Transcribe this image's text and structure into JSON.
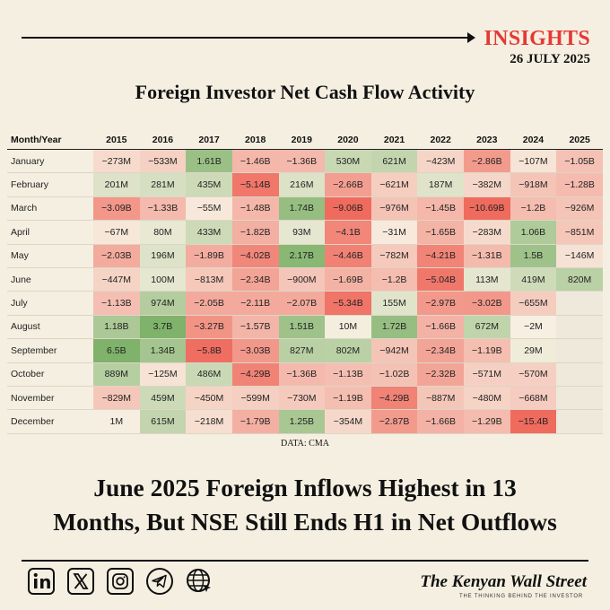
{
  "header": {
    "insights_label": "INSIGHTS",
    "date": "26 JULY 2025"
  },
  "chart_data": {
    "type": "heatmap",
    "title": "Foreign Investor Net Cash Flow Activity",
    "corner_label": "Month/Year",
    "columns": [
      "2015",
      "2016",
      "2017",
      "2018",
      "2019",
      "2020",
      "2021",
      "2022",
      "2023",
      "2024",
      "2025"
    ],
    "rows": [
      {
        "label": "January",
        "values": [
          -273,
          -533,
          1610,
          -1460,
          -1360,
          530,
          621,
          -423,
          -2860,
          -107,
          -1050
        ],
        "text": [
          "−273M",
          "−533M",
          "1.61B",
          "−1.46B",
          "−1.36B",
          "530M",
          "621M",
          "−423M",
          "−2.86B",
          "−107M",
          "−1.05B"
        ]
      },
      {
        "label": "February",
        "values": [
          201,
          281,
          435,
          -5140,
          216,
          -2660,
          -621,
          187,
          -382,
          -918,
          -1280
        ],
        "text": [
          "201M",
          "281M",
          "435M",
          "−5.14B",
          "216M",
          "−2.66B",
          "−621M",
          "187M",
          "−382M",
          "−918M",
          "−1.28B"
        ]
      },
      {
        "label": "March",
        "values": [
          -3090,
          -1330,
          -55,
          -1480,
          1740,
          -9060,
          -976,
          -1450,
          -10690,
          -1200,
          -926
        ],
        "text": [
          "−3.09B",
          "−1.33B",
          "−55M",
          "−1.48B",
          "1.74B",
          "−9.06B",
          "−976M",
          "−1.45B",
          "−10.69B",
          "−1.2B",
          "−926M"
        ]
      },
      {
        "label": "April",
        "values": [
          -67,
          80,
          433,
          -1820,
          93,
          -4100,
          -31,
          -1650,
          -283,
          1060,
          -851
        ],
        "text": [
          "−67M",
          "80M",
          "433M",
          "−1.82B",
          "93M",
          "−4.1B",
          "−31M",
          "−1.65B",
          "−283M",
          "1.06B",
          "−851M"
        ]
      },
      {
        "label": "May",
        "values": [
          -2030,
          196,
          -1890,
          -4020,
          2170,
          -4460,
          -782,
          -4210,
          -1310,
          1500,
          -146
        ],
        "text": [
          "−2.03B",
          "196M",
          "−1.89B",
          "−4.02B",
          "2.17B",
          "−4.46B",
          "−782M",
          "−4.21B",
          "−1.31B",
          "1.5B",
          "−146M"
        ]
      },
      {
        "label": "June",
        "values": [
          -447,
          100,
          -813,
          -2340,
          -900,
          -1690,
          -1200,
          -5040,
          113,
          419,
          820
        ],
        "text": [
          "−447M",
          "100M",
          "−813M",
          "−2.34B",
          "−900M",
          "−1.69B",
          "−1.2B",
          "−5.04B",
          "113M",
          "419M",
          "820M"
        ]
      },
      {
        "label": "July",
        "values": [
          -1130,
          974,
          -2050,
          -2110,
          -2070,
          -5340,
          155,
          -2970,
          -3020,
          -655,
          null
        ],
        "text": [
          "−1.13B",
          "974M",
          "−2.05B",
          "−2.11B",
          "−2.07B",
          "−5.34B",
          "155M",
          "−2.97B",
          "−3.02B",
          "−655M",
          ""
        ]
      },
      {
        "label": "August",
        "values": [
          1180,
          3700,
          -3270,
          -1570,
          1510,
          10,
          1720,
          -1660,
          672,
          -2,
          null
        ],
        "text": [
          "1.18B",
          "3.7B",
          "−3.27B",
          "−1.57B",
          "1.51B",
          "10M",
          "1.72B",
          "−1.66B",
          "672M",
          "−2M",
          ""
        ]
      },
      {
        "label": "September",
        "values": [
          6500,
          1340,
          -5800,
          -3030,
          827,
          802,
          -942,
          -2340,
          -1190,
          29,
          null
        ],
        "text": [
          "6.5B",
          "1.34B",
          "−5.8B",
          "−3.03B",
          "827M",
          "802M",
          "−942M",
          "−2.34B",
          "−1.19B",
          "29M",
          ""
        ]
      },
      {
        "label": "October",
        "values": [
          889,
          -125,
          486,
          -4290,
          -1360,
          -1130,
          -1020,
          -2320,
          -571,
          -570,
          null
        ],
        "text": [
          "889M",
          "−125M",
          "486M",
          "−4.29B",
          "−1.36B",
          "−1.13B",
          "−1.02B",
          "−2.32B",
          "−571M",
          "−570M",
          ""
        ]
      },
      {
        "label": "November",
        "values": [
          -829,
          459,
          -450,
          -599,
          -730,
          -1190,
          -4290,
          -887,
          -480,
          -668,
          null
        ],
        "text": [
          "−829M",
          "459M",
          "−450M",
          "−599M",
          "−730M",
          "−1.19B",
          "−4.29B",
          "−887M",
          "−480M",
          "−668M",
          ""
        ]
      },
      {
        "label": "December",
        "values": [
          1,
          615,
          -218,
          -1790,
          1250,
          -354,
          -2870,
          -1660,
          -1290,
          -15400,
          null
        ],
        "text": [
          "1M",
          "615M",
          "−218M",
          "−1.79B",
          "1.25B",
          "−354M",
          "−2.87B",
          "−1.66B",
          "−1.29B",
          "−15.4B",
          ""
        ]
      }
    ],
    "units": "KES (M = million, B = billion)",
    "colors": {
      "positive": "#7fb26a",
      "negative": "#ef6b5e",
      "neutral": "#f7f0e2",
      "empty": "#efe9dc"
    }
  },
  "source_label": "DATA: CMA",
  "headline": {
    "line1": "June 2025 Foreign Inflows Highest in 13",
    "line2": "Months, But NSE Still Ends H1 in Net Outflows"
  },
  "footer": {
    "social_icons": [
      "linkedin-icon",
      "x-icon",
      "instagram-icon",
      "telegram-icon",
      "globe-icon"
    ],
    "brand": "The Kenyan Wall Street",
    "tagline": "THE THINKING BEHIND THE INVESTOR"
  }
}
